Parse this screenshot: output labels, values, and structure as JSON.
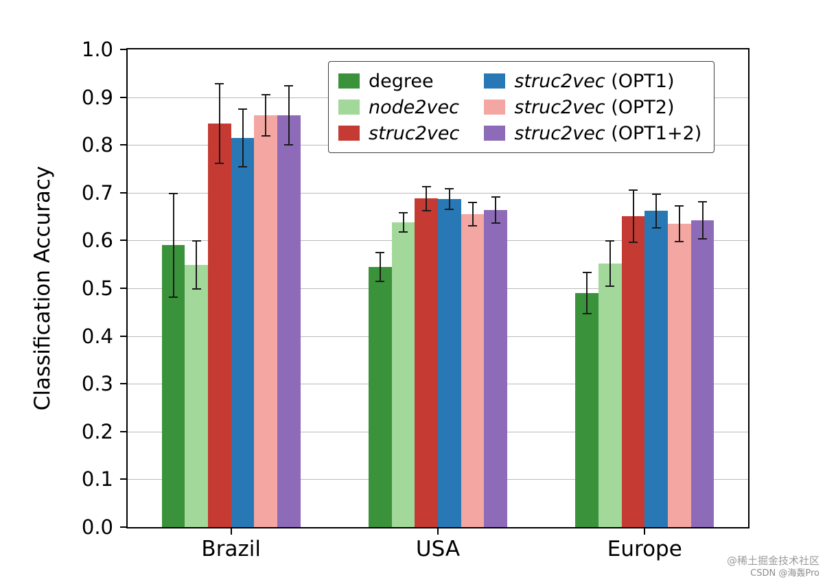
{
  "watermark": {
    "line1": "@稀土掘金技术社区",
    "line2": "CSDN @海轰Pro"
  },
  "chart_data": {
    "type": "bar",
    "title": "",
    "xlabel": "",
    "ylabel": "Classification Accuracy",
    "categories": [
      "Brazil",
      "USA",
      "Europe"
    ],
    "ylim": [
      0.0,
      1.0
    ],
    "ytick_step": 0.1,
    "grid": true,
    "grid_color": "#b9b9b9",
    "legend": {
      "columns": 2,
      "position": "upper center-right",
      "border": true
    },
    "series": [
      {
        "name": "degree",
        "italic": false,
        "suffix": "",
        "color": "#3a923a",
        "values": [
          0.59,
          0.545,
          0.49
        ],
        "errors": [
          0.108,
          0.03,
          0.043
        ]
      },
      {
        "name": "node2vec",
        "italic": true,
        "suffix": "",
        "color": "#a2d89a",
        "values": [
          0.549,
          0.638,
          0.552
        ],
        "errors": [
          0.05,
          0.02,
          0.047
        ]
      },
      {
        "name": "struc2vec",
        "italic": true,
        "suffix": "",
        "color": "#c53a32",
        "values": [
          0.845,
          0.688,
          0.651
        ],
        "errors": [
          0.083,
          0.025,
          0.055
        ]
      },
      {
        "name": "struc2vec",
        "italic": true,
        "suffix": " (OPT1)",
        "color": "#2878b5",
        "values": [
          0.815,
          0.687,
          0.662
        ],
        "errors": [
          0.06,
          0.021,
          0.035
        ]
      },
      {
        "name": "struc2vec",
        "italic": true,
        "suffix": " (OPT2)",
        "color": "#f4a7a2",
        "values": [
          0.862,
          0.655,
          0.635
        ],
        "errors": [
          0.043,
          0.024,
          0.037
        ]
      },
      {
        "name": "struc2vec",
        "italic": true,
        "suffix": " (OPT1+2)",
        "color": "#8d6bb8",
        "values": [
          0.862,
          0.664,
          0.642
        ],
        "errors": [
          0.062,
          0.027,
          0.039
        ]
      }
    ]
  }
}
